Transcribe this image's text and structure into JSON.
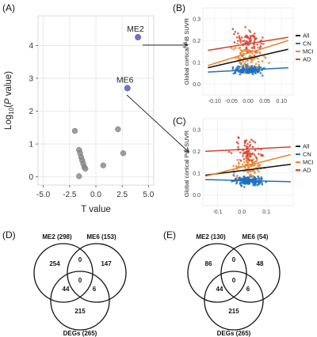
{
  "panels": {
    "A": "(A)",
    "B": "(B)",
    "C": "(C)",
    "D": "(D)",
    "E": "(E)"
  },
  "chart_data": [
    {
      "panel": "A",
      "type": "scatter",
      "xlabel": "T value",
      "ylabel": "Log10(P value)",
      "xlim": [
        -5.5,
        5.5
      ],
      "ylim": [
        -0.25,
        4.9
      ],
      "xticks": [
        "-5.0",
        "-2.5",
        "0.0",
        "2.5",
        "5.0"
      ],
      "xtick_values": [
        -5.0,
        -2.5,
        0.0,
        2.5,
        5.0
      ],
      "yticks": [
        "0",
        "1",
        "2",
        "3",
        "4"
      ],
      "ytick_values": [
        0,
        1,
        2,
        3,
        4
      ],
      "grid": true,
      "highlight_color": "#6f73c8",
      "base_color": "#8c8c8c",
      "points": [
        {
          "x": -2.0,
          "y": 1.4
        },
        {
          "x": -1.6,
          "y": 0.82
        },
        {
          "x": -1.5,
          "y": 0.72
        },
        {
          "x": -1.4,
          "y": 0.6
        },
        {
          "x": -1.3,
          "y": 0.5
        },
        {
          "x": -1.2,
          "y": 0.4
        },
        {
          "x": -1.1,
          "y": 0.3
        },
        {
          "x": -1.0,
          "y": 0.25
        },
        {
          "x": -1.6,
          "y": 0.02
        },
        {
          "x": 0.7,
          "y": 0.35
        },
        {
          "x": 2.1,
          "y": 1.45
        },
        {
          "x": 2.6,
          "y": 0.72
        }
      ],
      "labeled_points": [
        {
          "label": "ME2",
          "x": 4.0,
          "y": 4.25
        },
        {
          "label": "ME6",
          "x": 3.0,
          "y": 2.7
        }
      ]
    },
    {
      "panel": "B",
      "type": "scatter",
      "xlabel": "",
      "ylabel": "Global cortical PiB SUVR",
      "xlim": [
        -0.135,
        0.135
      ],
      "ylim": [
        -0.05,
        0.35
      ],
      "xticks": [
        "-0.10",
        "-0.05",
        "0.00",
        "0.05",
        "0.10"
      ],
      "xtick_values": [
        -0.1,
        -0.05,
        0.0,
        0.05,
        0.1
      ],
      "yticks": [
        "0.0",
        "0.1",
        "0.2",
        "0.3"
      ],
      "ytick_values": [
        0.0,
        0.1,
        0.2,
        0.3
      ],
      "legend_position": "right",
      "series": [
        {
          "name": "All",
          "color": "#111111",
          "line": [
            [
              -0.12,
              0.075
            ],
            [
              0.12,
              0.16
            ]
          ]
        },
        {
          "name": "CN",
          "color": "#1f6fbf",
          "line": [
            [
              -0.12,
              0.055
            ],
            [
              0.12,
              0.075
            ]
          ]
        },
        {
          "name": "MCI",
          "color": "#e8862e",
          "line": [
            [
              -0.12,
              0.085
            ],
            [
              0.12,
              0.2
            ]
          ]
        },
        {
          "name": "AD",
          "color": "#d9412b",
          "line": [
            [
              -0.12,
              0.155
            ],
            [
              0.12,
              0.215
            ]
          ]
        }
      ]
    },
    {
      "panel": "C",
      "type": "scatter",
      "xlabel": "",
      "ylabel": "Global cortical PiB SUVR",
      "xlim": [
        -0.16,
        0.21
      ],
      "ylim": [
        -0.05,
        0.35
      ],
      "xticks": [
        "-0.1",
        "0.0",
        "0.1"
      ],
      "xtick_values": [
        -0.1,
        0.0,
        0.1
      ],
      "yticks": [
        "0.0",
        "0.1",
        "0.2",
        "0.3"
      ],
      "ytick_values": [
        0.0,
        0.1,
        0.2,
        0.3
      ],
      "legend_position": "right",
      "series": [
        {
          "name": "All",
          "color": "#111111",
          "line": [
            [
              -0.15,
              0.09
            ],
            [
              0.2,
              0.14
            ]
          ]
        },
        {
          "name": "CN",
          "color": "#1f6fbf",
          "line": [
            [
              -0.15,
              0.07
            ],
            [
              0.2,
              0.06
            ]
          ]
        },
        {
          "name": "MCI",
          "color": "#e8862e",
          "line": [
            [
              -0.15,
              0.085
            ],
            [
              0.2,
              0.185
            ]
          ]
        },
        {
          "name": "AD",
          "color": "#d9412b",
          "line": [
            [
              -0.15,
              0.2
            ],
            [
              0.2,
              0.22
            ]
          ]
        }
      ]
    }
  ],
  "venn_D": {
    "sets": [
      "ME2 (298)",
      "ME6 (153)",
      "DEGs (265)"
    ],
    "only_a": "254",
    "only_b": "147",
    "a_and_b": "0",
    "center": "0",
    "a_and_c": "44",
    "b_and_c": "6",
    "only_c": "215"
  },
  "venn_E": {
    "sets": [
      "ME2 (130)",
      "ME6 (54)",
      "DEGs (265)"
    ],
    "only_a": "86",
    "only_b": "48",
    "a_and_b": "0",
    "center": "0",
    "a_and_c": "44",
    "b_and_c": "6",
    "only_c": "215"
  }
}
